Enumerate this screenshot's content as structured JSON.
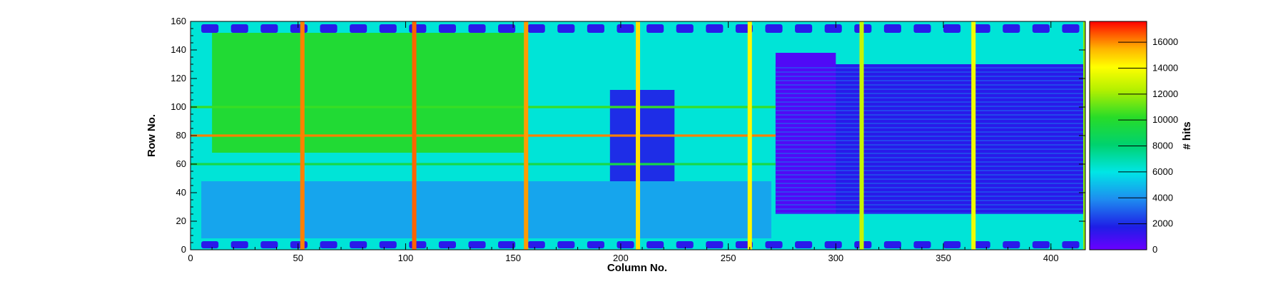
{
  "chart_data": {
    "type": "heatmap",
    "xlabel": "Column No.",
    "ylabel": "Row No.",
    "zlabel": "# hits",
    "xlim": [
      0,
      416
    ],
    "ylim": [
      0,
      160
    ],
    "zlim": [
      0,
      17600
    ],
    "x_ticks": [
      0,
      50,
      100,
      150,
      200,
      250,
      300,
      350,
      400
    ],
    "y_ticks": [
      0,
      20,
      40,
      60,
      80,
      100,
      120,
      140,
      160
    ],
    "z_ticks": [
      0,
      2000,
      4000,
      6000,
      8000,
      10000,
      12000,
      14000,
      16000
    ],
    "colormap": [
      "#6a00ff",
      "#1e1ee6",
      "#1e8cf0",
      "#00e6e6",
      "#00d26e",
      "#28dc28",
      "#b4f000",
      "#ffff00",
      "#ffb400",
      "#ff5000",
      "#ff0000"
    ],
    "regions": [
      {
        "name": "background",
        "x": [
          0,
          416
        ],
        "y": [
          0,
          160
        ],
        "z": 5500
      },
      {
        "name": "left core area",
        "x": [
          10,
          155
        ],
        "y": [
          68,
          152
        ],
        "z": 8500
      },
      {
        "name": "lower left blocks",
        "x": [
          5,
          270
        ],
        "y": [
          8,
          48
        ],
        "z": 4000
      },
      {
        "name": "central pad array",
        "x": [
          195,
          225
        ],
        "y": [
          48,
          112
        ],
        "z": 2000
      },
      {
        "name": "right pixel matrix",
        "x": [
          272,
          415
        ],
        "y": [
          25,
          130
        ],
        "z": 1500
      },
      {
        "name": "dense matrix block",
        "x": [
          272,
          300
        ],
        "y": [
          25,
          138
        ],
        "z": 600
      },
      {
        "name": "bond pads bottom",
        "y": [
          1,
          6
        ],
        "z": 300
      },
      {
        "name": "bond pads top",
        "y": [
          152,
          158
        ],
        "z": 300
      }
    ],
    "hot_columns": [
      {
        "x": 52,
        "z": 15000
      },
      {
        "x": 104,
        "z": 15500
      },
      {
        "x": 156,
        "z": 14500
      },
      {
        "x": 208,
        "z": 13000
      },
      {
        "x": 260,
        "z": 12500
      },
      {
        "x": 312,
        "z": 11000
      },
      {
        "x": 364,
        "z": 12000
      },
      {
        "x": 416,
        "z": 10000
      }
    ],
    "hot_rows": [
      {
        "y": 80,
        "x_range": [
          0,
          272
        ],
        "z": 15000
      },
      {
        "y": 100,
        "x_range": [
          0,
          272
        ],
        "z": 9000
      },
      {
        "y": 60,
        "x_range": [
          0,
          272
        ],
        "z": 8000
      }
    ]
  }
}
